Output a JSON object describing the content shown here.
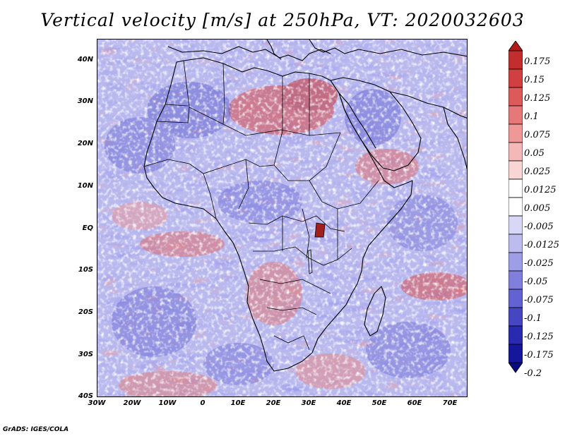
{
  "title": "Vertical velocity [m/s] at 250hPa, VT: 2020032603",
  "credit": "GrADS: IGES/COLA",
  "map": {
    "region": "Africa",
    "lat_labels": [
      "40N",
      "30N",
      "20N",
      "10N",
      "EQ",
      "10S",
      "20S",
      "30S",
      "40S"
    ],
    "lon_labels": [
      "30W",
      "20W",
      "10W",
      "0",
      "10E",
      "20E",
      "30E",
      "40E",
      "50E",
      "60E",
      "70E"
    ],
    "lat_values": [
      40,
      30,
      20,
      10,
      0,
      -10,
      -20,
      -30,
      -40
    ],
    "lon_values": [
      -30,
      -20,
      -10,
      0,
      10,
      20,
      30,
      40,
      50,
      60,
      70
    ],
    "lon_range": [
      -30,
      75
    ],
    "lat_range": [
      -40,
      45
    ]
  },
  "colorbar": {
    "levels": [
      "0.175",
      "0.15",
      "0.125",
      "0.1",
      "0.075",
      "0.05",
      "0.025",
      "0.0125",
      "0.005",
      "-0.005",
      "-0.0125",
      "-0.025",
      "-0.05",
      "-0.075",
      "-0.1",
      "-0.125",
      "-0.175",
      "-0.2"
    ],
    "colors": [
      "#b01a1a",
      "#c22e2e",
      "#d04040",
      "#dc5a5a",
      "#e57878",
      "#ee9898",
      "#f4b8b8",
      "#f9d6d6",
      "#ffffff",
      "#ffffff",
      "#d8d8f6",
      "#bcbcef",
      "#9e9ee6",
      "#8080dc",
      "#6262d0",
      "#4646c2",
      "#2a2ab0",
      "#16169a",
      "#0a0a80"
    ]
  }
}
